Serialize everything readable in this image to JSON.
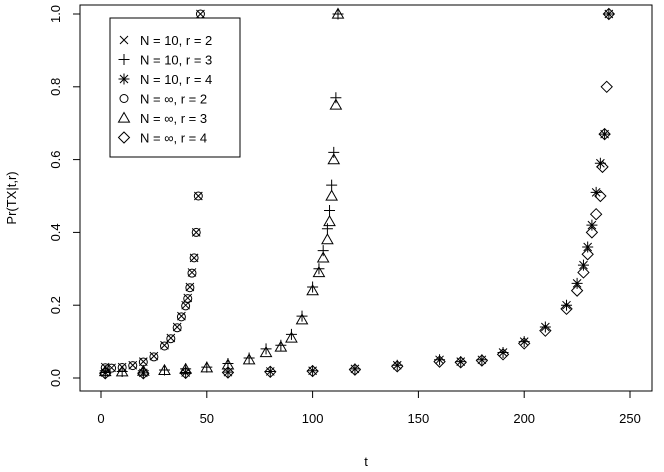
{
  "chart_data": {
    "type": "scatter",
    "title": "",
    "xlabel": "t",
    "ylabel": "Pr(TX|t,r)",
    "xlim": [
      0,
      260
    ],
    "ylim": [
      0,
      1.0
    ],
    "x_ticks": [
      0,
      50,
      100,
      150,
      200,
      250
    ],
    "y_ticks": [
      0.0,
      0.2,
      0.4,
      0.6,
      0.8,
      1.0
    ],
    "x_tick_labels": [
      "0",
      "50",
      "100",
      "150",
      "200",
      "250"
    ],
    "y_tick_labels": [
      "0.0",
      "0.2",
      "0.4",
      "0.6",
      "0.8",
      "1.0"
    ],
    "grid": false,
    "legend_position": "top-left",
    "series": [
      {
        "name": "N = 10, r = 2",
        "marker": "cross",
        "x": [
          2,
          5,
          10,
          15,
          20,
          25,
          30,
          33,
          36,
          38,
          40,
          41,
          42,
          43,
          44,
          45,
          46,
          47
        ],
        "y": [
          0.03,
          0.028,
          0.03,
          0.035,
          0.045,
          0.06,
          0.09,
          0.11,
          0.14,
          0.17,
          0.2,
          0.22,
          0.25,
          0.29,
          0.33,
          0.4,
          0.5,
          1.0
        ]
      },
      {
        "name": "N = 10, r = 3",
        "marker": "plus",
        "x": [
          2,
          10,
          20,
          30,
          40,
          50,
          60,
          70,
          78,
          85,
          90,
          95,
          100,
          103,
          105,
          107,
          108,
          109,
          110,
          111,
          112
        ],
        "y": [
          0.02,
          0.018,
          0.02,
          0.022,
          0.025,
          0.03,
          0.04,
          0.055,
          0.08,
          0.09,
          0.12,
          0.17,
          0.25,
          0.3,
          0.35,
          0.41,
          0.46,
          0.53,
          0.62,
          0.77,
          1.0
        ]
      },
      {
        "name": "N = 10, r = 4",
        "marker": "star",
        "x": [
          2,
          20,
          40,
          60,
          80,
          100,
          120,
          140,
          160,
          170,
          180,
          190,
          200,
          210,
          220,
          225,
          228,
          230,
          232,
          234,
          236,
          238,
          240
        ],
        "y": [
          0.015,
          0.014,
          0.015,
          0.016,
          0.018,
          0.02,
          0.025,
          0.035,
          0.05,
          0.045,
          0.05,
          0.07,
          0.1,
          0.14,
          0.2,
          0.26,
          0.31,
          0.36,
          0.42,
          0.51,
          0.59,
          0.67,
          1.0
        ]
      },
      {
        "name": "N = ∞, r = 2",
        "marker": "circle",
        "x": [
          2,
          5,
          10,
          15,
          20,
          25,
          30,
          33,
          36,
          38,
          40,
          41,
          42,
          43,
          44,
          45,
          46,
          47
        ],
        "y": [
          0.028,
          0.027,
          0.029,
          0.034,
          0.044,
          0.058,
          0.088,
          0.108,
          0.138,
          0.168,
          0.198,
          0.218,
          0.248,
          0.288,
          0.33,
          0.4,
          0.5,
          1.0
        ]
      },
      {
        "name": "N = ∞, r = 3",
        "marker": "triangle",
        "x": [
          2,
          10,
          20,
          30,
          40,
          50,
          60,
          70,
          78,
          85,
          90,
          95,
          100,
          103,
          105,
          107,
          108,
          109,
          110,
          111,
          112
        ],
        "y": [
          0.018,
          0.017,
          0.019,
          0.021,
          0.024,
          0.028,
          0.036,
          0.05,
          0.07,
          0.085,
          0.11,
          0.16,
          0.24,
          0.29,
          0.33,
          0.38,
          0.43,
          0.5,
          0.6,
          0.75,
          1.0
        ]
      },
      {
        "name": "N = ∞, r = 4",
        "marker": "diamond",
        "x": [
          2,
          20,
          40,
          60,
          80,
          100,
          120,
          140,
          160,
          170,
          180,
          190,
          200,
          210,
          220,
          225,
          228,
          230,
          232,
          234,
          236,
          237,
          238,
          239,
          240
        ],
        "y": [
          0.013,
          0.013,
          0.014,
          0.015,
          0.017,
          0.019,
          0.023,
          0.032,
          0.045,
          0.043,
          0.048,
          0.065,
          0.095,
          0.13,
          0.19,
          0.24,
          0.29,
          0.34,
          0.4,
          0.45,
          0.5,
          0.58,
          0.67,
          0.8,
          1.0
        ]
      }
    ]
  }
}
